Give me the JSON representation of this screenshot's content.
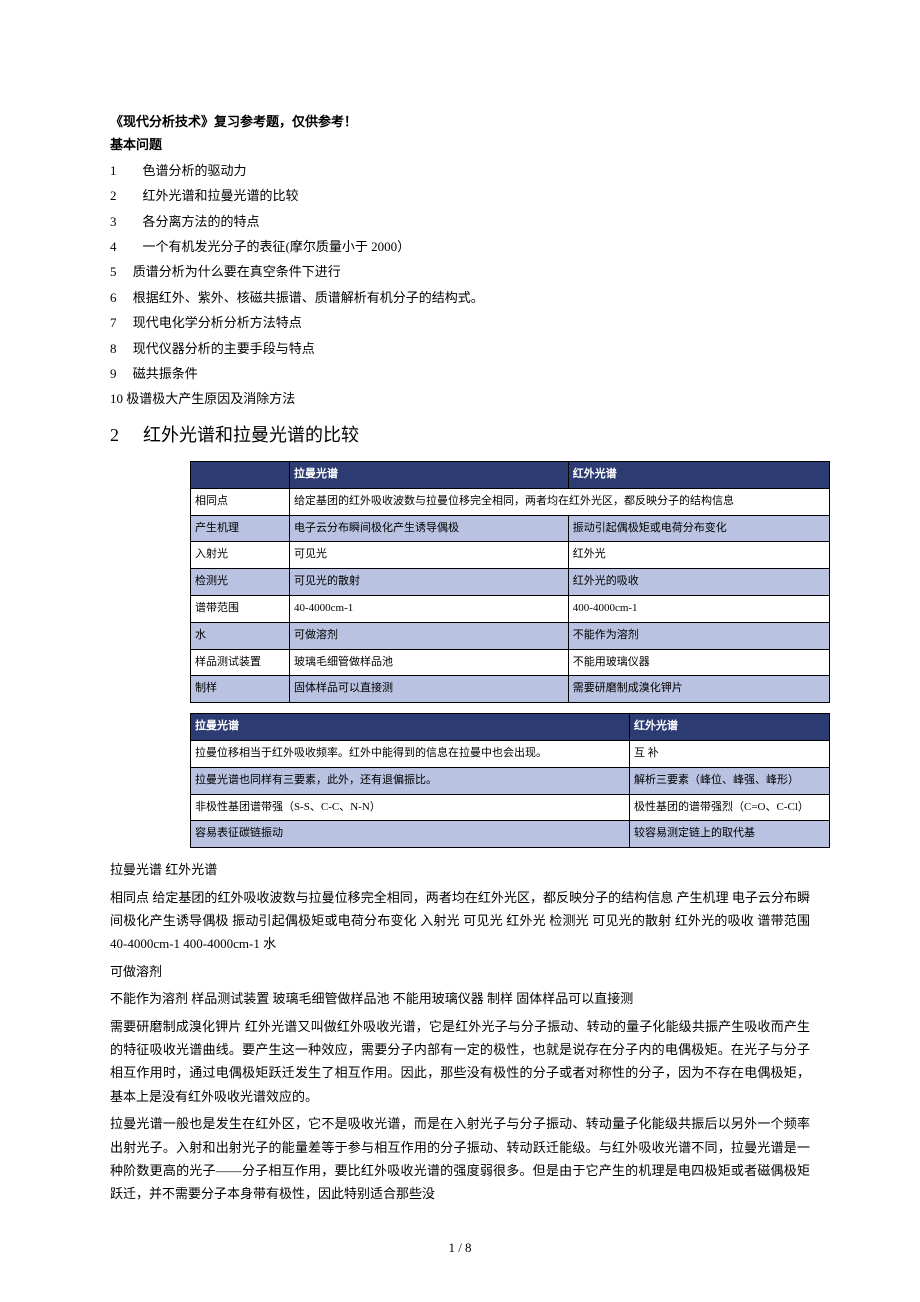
{
  "title": "《现代分析技术》复习参考题，仅供参考！",
  "subtitle": "基本问题",
  "questions": [
    "1　　色谱分析的驱动力",
    "2　　红外光谱和拉曼光谱的比较",
    "3　　各分离方法的的特点",
    "4　　一个有机发光分子的表征(摩尔质量小于 2000）",
    "5　 质谱分析为什么要在真空条件下进行",
    "6　 根据红外、紫外、核磁共振谱、质谱解析有机分子的结构式。",
    "7　 现代电化学分析分析方法特点",
    "8　 现代仪器分析的主要手段与特点",
    "9　 磁共振条件",
    "10  极谱极大产生原因及消除方法"
  ],
  "heading_number": "2",
  "heading_text": "红外光谱和拉曼光谱的比较",
  "table1": {
    "header": [
      "",
      "拉曼光谱",
      "红外光谱"
    ],
    "rows": [
      [
        "相同点",
        "给定基团的红外吸收波数与拉曼位移完全相同，两者均在红外光区，都反映分子的结构信息"
      ],
      [
        "产生机理",
        "电子云分布瞬间极化产生诱导偶极",
        "振动引起偶极矩或电荷分布变化"
      ],
      [
        "入射光",
        "可见光",
        "红外光"
      ],
      [
        "检测光",
        "可见光的散射",
        "红外光的吸收"
      ],
      [
        "谱带范围",
        "40-4000cm-1",
        "400-4000cm-1"
      ],
      [
        "水",
        "可做溶剂",
        "不能作为溶剂"
      ],
      [
        "样品测试装置",
        "玻璃毛细管做样品池",
        "不能用玻璃仪器"
      ],
      [
        "制样",
        "固体样品可以直接测",
        "需要研磨制成溴化钾片"
      ]
    ]
  },
  "table2": {
    "header": [
      "拉曼光谱",
      "红外光谱"
    ],
    "rows": [
      [
        "拉曼位移相当于红外吸收频率。红外中能得到的信息在拉曼中也会出现。",
        "互 补"
      ],
      [
        "拉曼光谱也同样有三要素，此外，还有退偏振比。",
        "解析三要素（峰位、峰强、峰形）"
      ],
      [
        "非极性基团谱带强（S-S、C-C、N-N）",
        "极性基团的谱带强烈（C=O、C-Cl）"
      ],
      [
        "容易表征碳链振动",
        "较容易测定链上的取代基"
      ]
    ]
  },
  "paragraphs": [
    "  拉曼光谱  红外光谱",
    "相同点 给定基团的红外吸收波数与拉曼位移完全相同，两者均在红外光区，都反映分子的结构信息 产生机理 电子云分布瞬间极化产生诱导偶极 振动引起偶极矩或电荷分布变化 入射光 可见光 红外光 检测光 可见光的散射 红外光的吸收 谱带范围 40-4000cm-1 400-4000cm-1 水",
    "可做溶剂",
    "不能作为溶剂 样品测试装置 玻璃毛细管做样品池 不能用玻璃仪器 制样 固体样品可以直接测",
    "需要研磨制成溴化钾片 红外光谱又叫做红外吸收光谱，它是红外光子与分子振动、转动的量子化能级共振产生吸收而产生的特征吸收光谱曲线。要产生这一种效应，需要分子内部有一定的极性，也就是说存在分子内的电偶极矩。在光子与分子相互作用时，通过电偶极矩跃迁发生了相互作用。因此，那些没有极性的分子或者对称性的分子，因为不存在电偶极矩，基本上是没有红外吸收光谱效应的。",
    "拉曼光谱一般也是发生在红外区，它不是吸收光谱，而是在入射光子与分子振动、转动量子化能级共振后以另外一个频率出射光子。入射和出射光子的能量差等于参与相互作用的分子振动、转动跃迁能级。与红外吸收光谱不同，拉曼光谱是一种阶数更高的光子——分子相互作用，要比红外吸收光谱的强度弱很多。但是由于它产生的机理是电四极矩或者磁偶极矩跃迁，并不需要分子本身带有极性，因此特别适合那些没"
  ],
  "footer": "1 / 8"
}
